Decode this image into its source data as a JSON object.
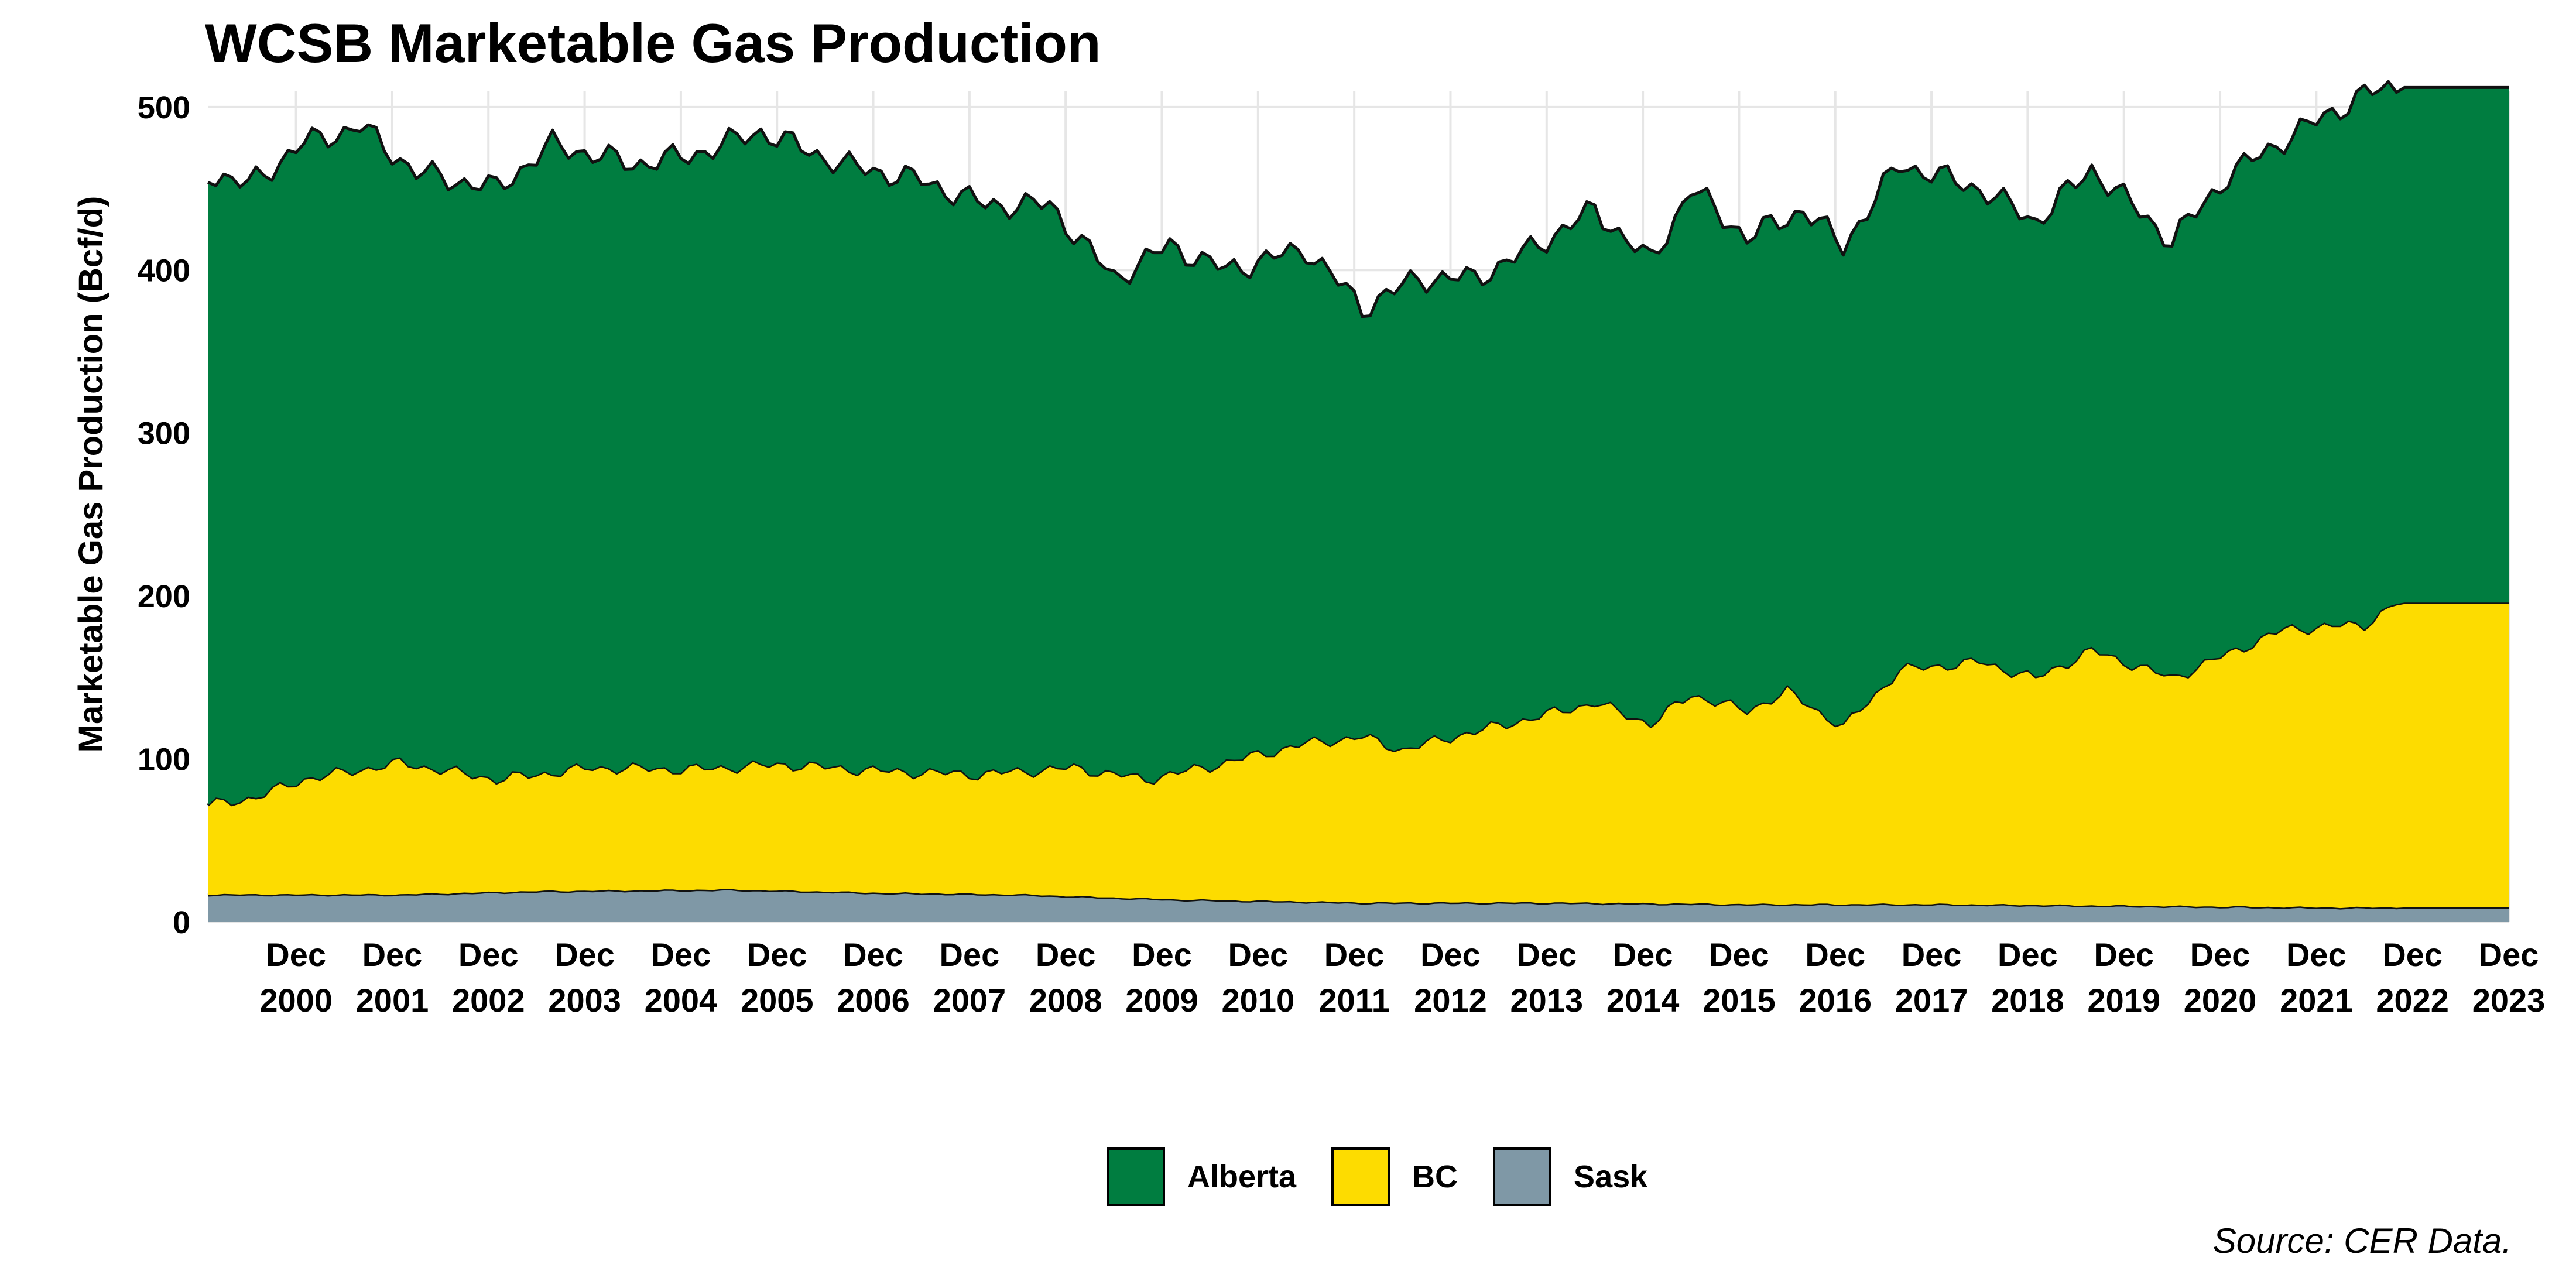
{
  "chart_data": {
    "type": "area",
    "stacked": true,
    "title": "WCSB Marketable Gas Production",
    "xlabel": "",
    "ylabel": "Marketable Gas Production (Bcf/d)",
    "ylim": [
      0,
      510
    ],
    "yticks": [
      0,
      100,
      200,
      300,
      400,
      500
    ],
    "xlim": [
      "2000-01",
      "2023-12"
    ],
    "x_ticks": [
      {
        "x": "2000-12",
        "line1": "Dec",
        "line2": "2000"
      },
      {
        "x": "2001-12",
        "line1": "Dec",
        "line2": "2001"
      },
      {
        "x": "2002-12",
        "line1": "Dec",
        "line2": "2002"
      },
      {
        "x": "2003-12",
        "line1": "Dec",
        "line2": "2003"
      },
      {
        "x": "2004-12",
        "line1": "Dec",
        "line2": "2004"
      },
      {
        "x": "2005-12",
        "line1": "Dec",
        "line2": "2005"
      },
      {
        "x": "2006-12",
        "line1": "Dec",
        "line2": "2006"
      },
      {
        "x": "2007-12",
        "line1": "Dec",
        "line2": "2007"
      },
      {
        "x": "2008-12",
        "line1": "Dec",
        "line2": "2008"
      },
      {
        "x": "2009-12",
        "line1": "Dec",
        "line2": "2009"
      },
      {
        "x": "2010-12",
        "line1": "Dec",
        "line2": "2010"
      },
      {
        "x": "2011-12",
        "line1": "Dec",
        "line2": "2011"
      },
      {
        "x": "2012-12",
        "line1": "Dec",
        "line2": "2012"
      },
      {
        "x": "2013-12",
        "line1": "Dec",
        "line2": "2013"
      },
      {
        "x": "2014-12",
        "line1": "Dec",
        "line2": "2014"
      },
      {
        "x": "2015-12",
        "line1": "Dec",
        "line2": "2015"
      },
      {
        "x": "2016-12",
        "line1": "Dec",
        "line2": "2016"
      },
      {
        "x": "2017-12",
        "line1": "Dec",
        "line2": "2017"
      },
      {
        "x": "2018-12",
        "line1": "Dec",
        "line2": "2018"
      },
      {
        "x": "2019-12",
        "line1": "Dec",
        "line2": "2019"
      },
      {
        "x": "2020-12",
        "line1": "Dec",
        "line2": "2020"
      },
      {
        "x": "2021-12",
        "line1": "Dec",
        "line2": "2021"
      },
      {
        "x": "2022-12",
        "line1": "Dec",
        "line2": "2022"
      },
      {
        "x": "2023-12",
        "line1": "Dec",
        "line2": "2023"
      }
    ],
    "grid": true,
    "legend_position": "bottom",
    "stack_order": [
      "Sask",
      "BC",
      "Alberta"
    ],
    "series_anchor_points": [
      {
        "name": "Sask",
        "color": "#7f98a6",
        "points": [
          [
            "2000-01",
            17
          ],
          [
            "2002-01",
            17
          ],
          [
            "2003-06",
            19
          ],
          [
            "2005-06",
            20
          ],
          [
            "2007-01",
            18
          ],
          [
            "2008-06",
            17
          ],
          [
            "2010-01",
            14
          ],
          [
            "2012-01",
            12
          ],
          [
            "2014-01",
            12
          ],
          [
            "2016-01",
            11
          ],
          [
            "2018-01",
            11
          ],
          [
            "2020-01",
            10
          ],
          [
            "2022-01",
            9
          ],
          [
            "2023-12",
            9
          ]
        ]
      },
      {
        "name": "BC",
        "color": "#fddc00",
        "points": [
          [
            "2000-01",
            72
          ],
          [
            "2000-07",
            77
          ],
          [
            "2001-01",
            88
          ],
          [
            "2002-01",
            98
          ],
          [
            "2003-01",
            88
          ],
          [
            "2004-01",
            95
          ],
          [
            "2005-01",
            94
          ],
          [
            "2006-01",
            97
          ],
          [
            "2007-01",
            93
          ],
          [
            "2008-01",
            91
          ],
          [
            "2009-01",
            95
          ],
          [
            "2009-10",
            88
          ],
          [
            "2010-06",
            96
          ],
          [
            "2011-06",
            110
          ],
          [
            "2012-01",
            114
          ],
          [
            "2012-06",
            106
          ],
          [
            "2013-01",
            115
          ],
          [
            "2013-08",
            123
          ],
          [
            "2014-06",
            135
          ],
          [
            "2015-01",
            122
          ],
          [
            "2015-06",
            140
          ],
          [
            "2016-01",
            130
          ],
          [
            "2016-06",
            142
          ],
          [
            "2017-01",
            120
          ],
          [
            "2017-08",
            155
          ],
          [
            "2018-06",
            160
          ],
          [
            "2019-01",
            150
          ],
          [
            "2019-08",
            167
          ],
          [
            "2020-06",
            150
          ],
          [
            "2021-01",
            165
          ],
          [
            "2021-08",
            180
          ],
          [
            "2022-06",
            183
          ],
          [
            "2022-10",
            196
          ],
          [
            "2023-12",
            196
          ]
        ]
      },
      {
        "name": "Alberta",
        "color": "#007d40",
        "points": [
          [
            "2000-01",
            460
          ],
          [
            "2000-06",
            452
          ],
          [
            "2001-01",
            478
          ],
          [
            "2001-08",
            488
          ],
          [
            "2002-03",
            460
          ],
          [
            "2003-01",
            450
          ],
          [
            "2003-08",
            477
          ],
          [
            "2004-06",
            465
          ],
          [
            "2005-01",
            470
          ],
          [
            "2005-10",
            485
          ],
          [
            "2006-08",
            465
          ],
          [
            "2007-06",
            455
          ],
          [
            "2008-02",
            440
          ],
          [
            "2008-10",
            440
          ],
          [
            "2009-06",
            395
          ],
          [
            "2010-01",
            415
          ],
          [
            "2010-08",
            400
          ],
          [
            "2011-06",
            413
          ],
          [
            "2012-01",
            377
          ],
          [
            "2012-08",
            395
          ],
          [
            "2013-03",
            395
          ],
          [
            "2013-09",
            410
          ],
          [
            "2014-06",
            437
          ],
          [
            "2015-01",
            405
          ],
          [
            "2015-06",
            450
          ],
          [
            "2016-01",
            420
          ],
          [
            "2016-08",
            437
          ],
          [
            "2017-01",
            415
          ],
          [
            "2017-08",
            465
          ],
          [
            "2018-06",
            450
          ],
          [
            "2019-01",
            430
          ],
          [
            "2019-08",
            462
          ],
          [
            "2020-06",
            418
          ],
          [
            "2021-01",
            458
          ],
          [
            "2021-08",
            480
          ],
          [
            "2022-06",
            508
          ],
          [
            "2022-10",
            512
          ],
          [
            "2023-12",
            512
          ]
        ]
      }
    ],
    "legend": [
      {
        "name": "Alberta",
        "color": "#007d40"
      },
      {
        "name": "BC",
        "color": "#fddc00"
      },
      {
        "name": "Sask",
        "color": "#7f98a6"
      }
    ]
  },
  "source_note": "Source: CER Data."
}
